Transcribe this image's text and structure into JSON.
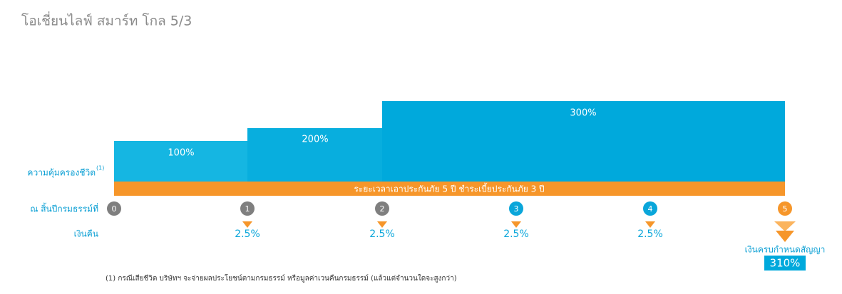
{
  "title": "โอเชี่ยนไลฟ์ สมาร์ท โกล 5/3",
  "coverage": {
    "label": "ความคุ้มครองชีวิต",
    "note_ref": "(1)",
    "steps": [
      "100%",
      "200%",
      "300%"
    ]
  },
  "term_bar": "ระยะเวลาเอาประกันภัย 5 ปี  ชำระเบี้ยประกันภัย 3 ปี",
  "years": {
    "label": "ณ สิ้นปีกรมธรรม์ที่",
    "items": [
      "0",
      "1",
      "2",
      "3",
      "4",
      "5"
    ]
  },
  "cash_back": {
    "label": "เงินคืน",
    "items": [
      "2.5%",
      "2.5%",
      "2.5%",
      "2.5%"
    ]
  },
  "maturity": {
    "label": "เงินครบกำหนดสัญญา",
    "value": "310%"
  },
  "footnote": "(1) กรณีเสียชีวิต บริษัทฯ จะจ่ายผลประโยชน์ตามกรมธรรม์ หรือมูลค่าเวนคืนกรมธรรม์ (แล้วแต่จำนวนใดจะสูงกว่า)"
}
